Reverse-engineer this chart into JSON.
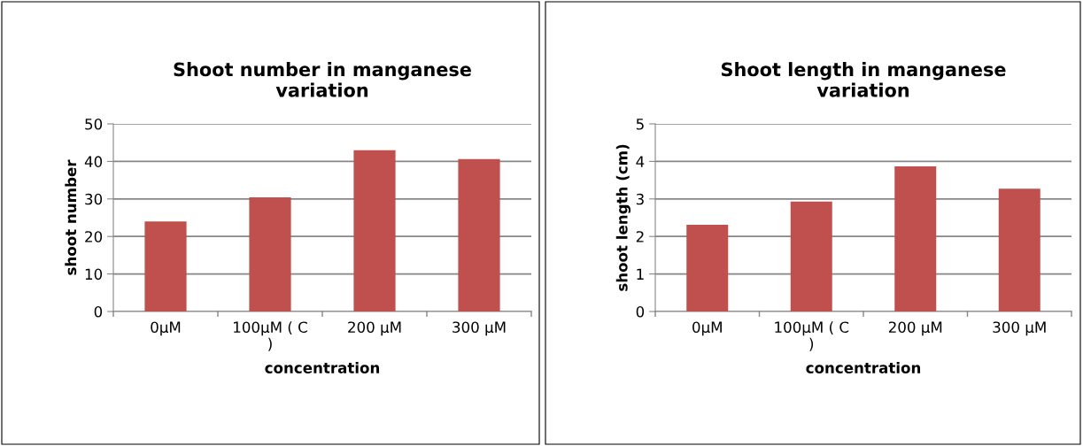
{
  "chart_data": [
    {
      "type": "bar",
      "title": "Shoot number in manganese\nvariation",
      "xlabel": "concentration",
      "ylabel": "shoot number",
      "categories": [
        "0µM",
        "100µM ( C\n)",
        "200 µM",
        "300 µM"
      ],
      "values": [
        24.0,
        30.4,
        43.0,
        40.6
      ],
      "color": "#c0504d",
      "ylim": [
        0,
        50
      ],
      "yticks": [
        0,
        10,
        20,
        30,
        40,
        50
      ],
      "grid": "y",
      "legend": false
    },
    {
      "type": "bar",
      "title": "Shoot length in manganese\nvariation",
      "xlabel": "concentration",
      "ylabel": "shoot length (cm)",
      "categories": [
        "0µM",
        "100µM ( C\n)",
        "200 µM",
        "300 µM"
      ],
      "values": [
        2.31,
        2.93,
        3.87,
        3.27
      ],
      "color": "#c0504d",
      "ylim": [
        0,
        5
      ],
      "yticks": [
        0,
        1,
        2,
        3,
        4,
        5
      ],
      "grid": "y",
      "legend": false
    }
  ]
}
